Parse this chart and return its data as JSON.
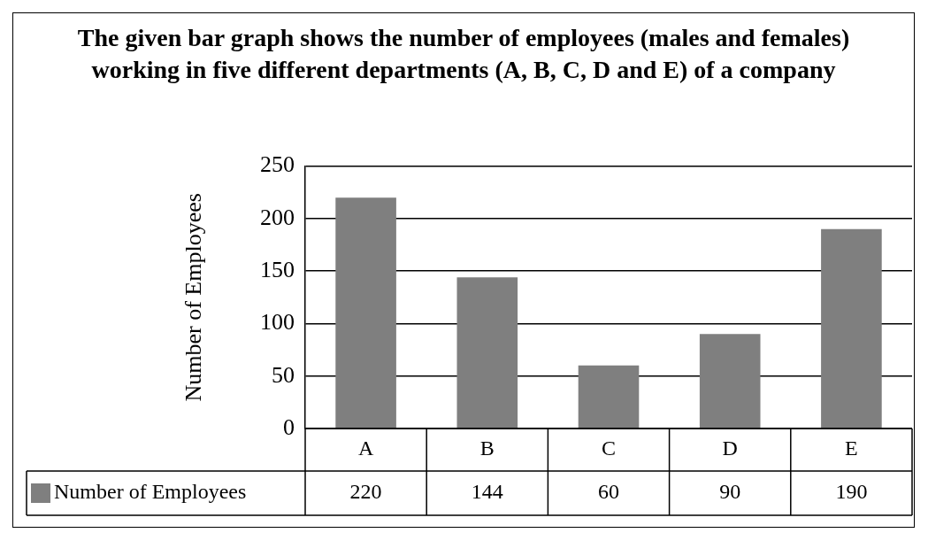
{
  "chart_data": {
    "type": "bar",
    "title": "The given bar graph shows the number of employees (males and females) working in five different departments (A, B, C, D  and E) of a company",
    "ylabel": "Number of Employees",
    "categories": [
      "A",
      "B",
      "C",
      "D",
      "E"
    ],
    "series": [
      {
        "name": "Number of Employees",
        "color": "#7f7f7f",
        "values": [
          220,
          144,
          60,
          90,
          190
        ]
      }
    ],
    "ylim": [
      0,
      250
    ],
    "yticks": [
      0,
      50,
      100,
      150,
      200,
      250
    ],
    "grid": "y",
    "legend": "bottom",
    "data_labels": true
  }
}
